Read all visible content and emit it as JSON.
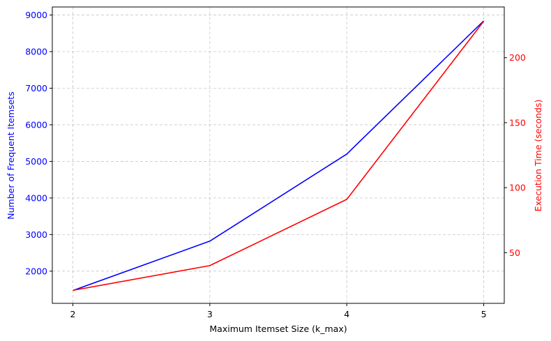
{
  "chart_data": {
    "type": "line",
    "xlabel": "Maximum Itemset Size (k_max)",
    "ylabel_left": "Number of Frequent Itemsets",
    "ylabel_right": "Execution Time (seconds)",
    "x": [
      2,
      3,
      4,
      5
    ],
    "xticks": [
      2,
      3,
      4,
      5
    ],
    "xlim": [
      1.85,
      5.15
    ],
    "ylim_left": [
      1120,
      9220
    ],
    "ylim_right": [
      11,
      239
    ],
    "yticks_left": [
      2000,
      3000,
      4000,
      5000,
      6000,
      7000,
      8000,
      9000
    ],
    "yticks_right": [
      50,
      100,
      150,
      200
    ],
    "grid": true,
    "series": [
      {
        "axis": "left",
        "color": "#0000ff",
        "values": [
          1470,
          2820,
          5200,
          8840
        ]
      },
      {
        "axis": "right",
        "color": "#ff0000",
        "values": [
          21,
          40,
          91,
          228
        ]
      }
    ]
  }
}
